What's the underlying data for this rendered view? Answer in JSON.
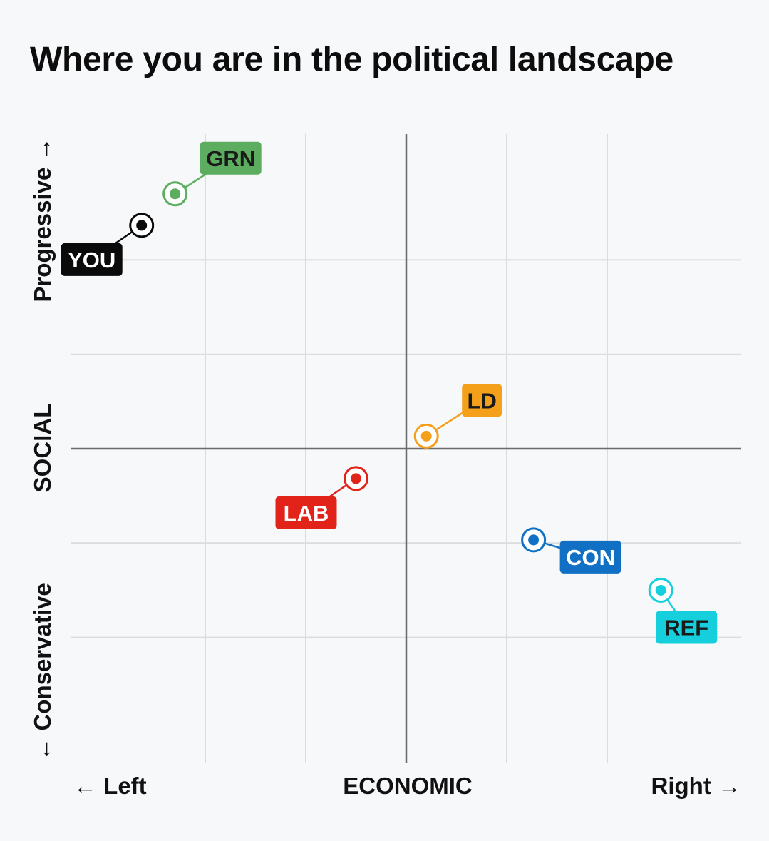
{
  "chart_data": {
    "type": "scatter",
    "title": "Where you are in the political landscape",
    "xlabel": "ECONOMIC",
    "ylabel": "SOCIAL",
    "x_left_label": "← Left",
    "x_right_label": "Right →",
    "y_top_label": "Progressive →",
    "y_bottom_label": "← Conservative",
    "xlim": [
      -10,
      10
    ],
    "ylim": [
      -10,
      10
    ],
    "grid": true,
    "points": [
      {
        "label": "GRN",
        "x": -6.9,
        "y": 8.1,
        "color": "#5cad5f",
        "text_color": "#1a1a1a",
        "label_side": "upper-right"
      },
      {
        "label": "YOU",
        "x": -7.9,
        "y": 7.1,
        "color": "#0a0a0a",
        "text_color": "#ffffff",
        "label_side": "lower-left"
      },
      {
        "label": "LD",
        "x": 0.6,
        "y": 0.4,
        "color": "#f4a01b",
        "text_color": "#1a1a1a",
        "label_side": "upper-right"
      },
      {
        "label": "LAB",
        "x": -1.5,
        "y": -0.95,
        "color": "#e2231a",
        "text_color": "#ffffff",
        "label_side": "lower-left"
      },
      {
        "label": "CON",
        "x": 3.8,
        "y": -2.9,
        "color": "#1170c4",
        "text_color": "#ffffff",
        "label_side": "lower-right"
      },
      {
        "label": "REF",
        "x": 7.6,
        "y": -4.5,
        "color": "#15cfdc",
        "text_color": "#1a1a1a",
        "label_side": "lower-right"
      }
    ]
  }
}
